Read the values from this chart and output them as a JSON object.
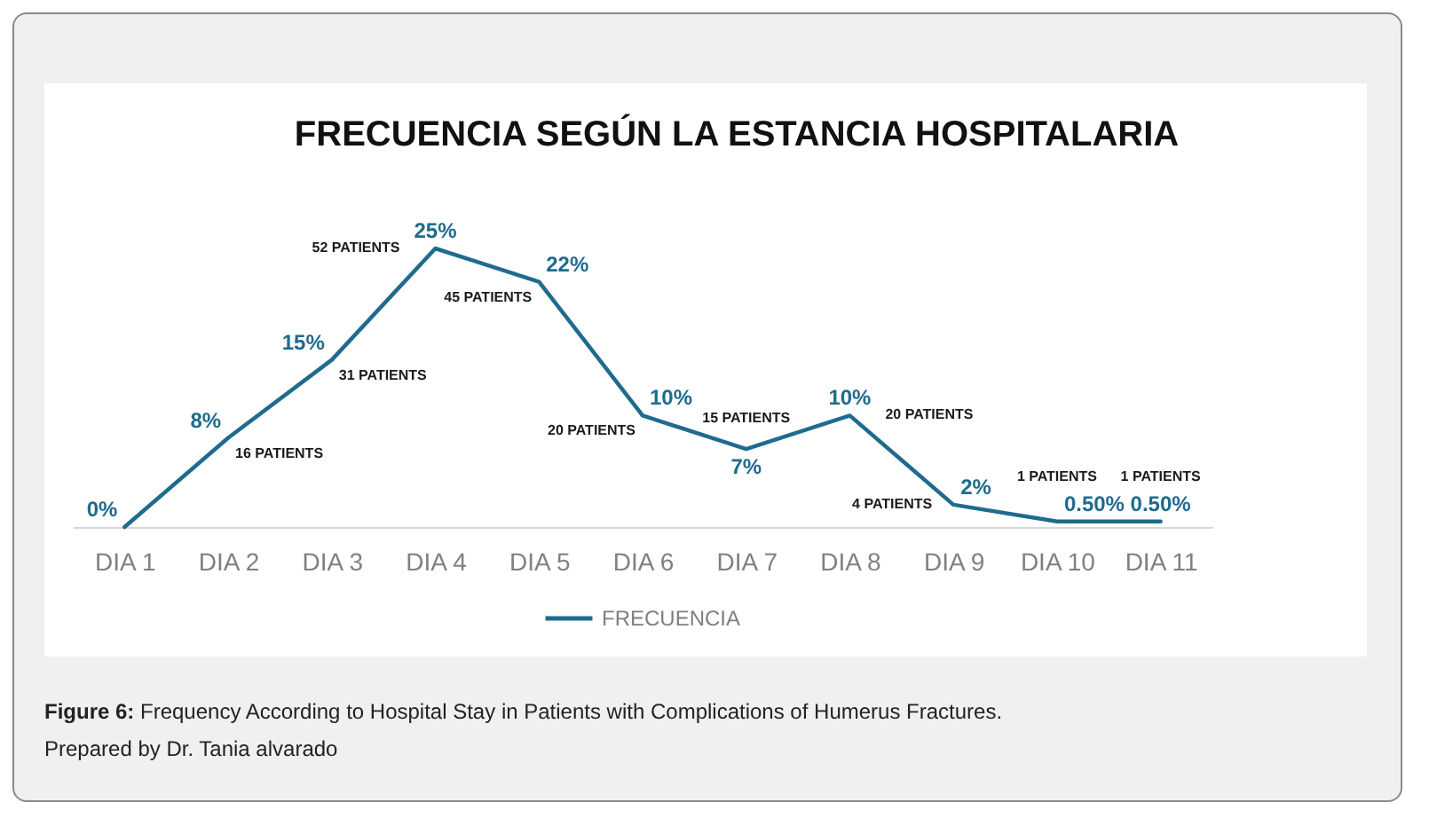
{
  "chart_data": {
    "type": "line",
    "title": "FRECUENCIA SEGÚN LA ESTANCIA HOSPITALARIA",
    "categories": [
      "DIA 1",
      "DIA 2",
      "DIA 3",
      "DIA 4",
      "DIA 5",
      "DIA 6",
      "DIA 7",
      "DIA 8",
      "DIA 9",
      "DIA 10",
      "DIA 11"
    ],
    "series": [
      {
        "name": "FRECUENCIA",
        "color": "#1f6b8e",
        "values": [
          0,
          8,
          15,
          25,
          22,
          10,
          7,
          10,
          2,
          0.5,
          0.5
        ],
        "value_labels": [
          "0%",
          "8%",
          "15%",
          "25%",
          "22%",
          "10%",
          "7%",
          "10%",
          "2%",
          "0.50%",
          "0.50%"
        ]
      }
    ],
    "annotations": [
      {
        "text": "16 PATIENTS",
        "x": "DIA 2",
        "y": 8
      },
      {
        "text": "31 PATIENTS",
        "x": "DIA 3",
        "y": 15
      },
      {
        "text": "52 PATIENTS",
        "x": "DIA 4",
        "y": 25
      },
      {
        "text": "45 PATIENTS",
        "x": "DIA 5",
        "y": 22
      },
      {
        "text": "20 PATIENTS",
        "x": "DIA 6",
        "y": 10
      },
      {
        "text": "15 PATIENTS",
        "x": "DIA 7",
        "y": 7
      },
      {
        "text": "20 PATIENTS",
        "x": "DIA 8",
        "y": 10
      },
      {
        "text": "4 PATIENTS",
        "x": "DIA 9",
        "y": 2
      },
      {
        "text": "1 PATIENTS",
        "x": "DIA 10",
        "y": 0.5
      },
      {
        "text": "1 PATIENTS",
        "x": "DIA 11",
        "y": 0.5
      },
      "Figure 6: Frequency According to Hospital Stay in Patients with Complications of Humerus Fractures.",
      "Prepared by Dr. Tania alvarado"
    ],
    "legend": "bottom",
    "line_style": "solid"
  }
}
